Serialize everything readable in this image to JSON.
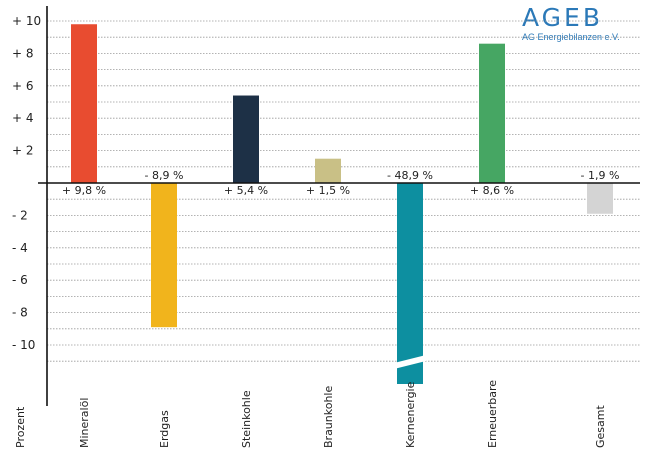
{
  "logo": {
    "text": "AGEB",
    "subtitle": "AG Energiebilanzen e.V."
  },
  "chart_data": {
    "type": "bar",
    "title": "",
    "xlabel": "",
    "ylabel": "Prozent",
    "ylim": [
      -10,
      10
    ],
    "y_ticks": [
      10,
      8,
      6,
      4,
      2,
      -2,
      -4,
      -6,
      -8,
      -10
    ],
    "y_tick_labels": [
      "+ 10",
      "+ 8",
      "+ 6",
      "+ 4",
      "+ 2",
      "- 2",
      "- 4",
      "- 6",
      "- 8",
      "- 10"
    ],
    "grid": true,
    "categories": [
      "Mineralöl",
      "Erdgas",
      "Steinkohle",
      "Braunkohle",
      "Kernenergie",
      "Erneuerbare",
      "Gesamt"
    ],
    "values": [
      9.8,
      -8.9,
      5.4,
      1.5,
      -48.9,
      8.6,
      -1.9
    ],
    "value_labels": [
      "+ 9,8 %",
      "- 8,9 %",
      "+ 5,4 %",
      "+ 1,5 %",
      "- 48,9 %",
      "+ 8,6 %",
      "- 1,9 %"
    ],
    "colors": [
      "#e84c30",
      "#f1b41c",
      "#1d3046",
      "#c9c086",
      "#0d8fa0",
      "#46a663",
      "#d4d4d4"
    ],
    "axis_break_category": "Kernenergie"
  }
}
